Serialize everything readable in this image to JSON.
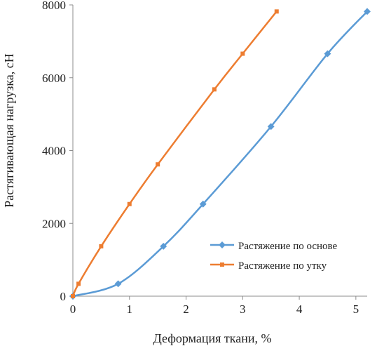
{
  "chart_data": {
    "type": "line",
    "xlabel": "Деформация ткани, %",
    "ylabel": "Растягивающая  нагрузка, сН",
    "xlim": [
      0,
      5.2
    ],
    "ylim": [
      0,
      8000
    ],
    "x_ticks": [
      "0",
      "1",
      "2",
      "3",
      "4",
      "5"
    ],
    "y_ticks": [
      "0",
      "2000",
      "4000",
      "6000",
      "8000"
    ],
    "grid": false,
    "legend_position": "bottom-right",
    "series": [
      {
        "name": "Растяжение по основе",
        "color": "#5b9bd5",
        "marker": "diamond",
        "x": [
          0,
          0.8,
          1.6,
          2.3,
          3.5,
          4.5,
          5.2
        ],
        "y": [
          0,
          340,
          1370,
          2530,
          4660,
          6660,
          7820
        ]
      },
      {
        "name": "Растяжение по утку",
        "color": "#ed7d31",
        "marker": "square",
        "x": [
          0,
          0.1,
          0.5,
          1.0,
          1.5,
          2.5,
          3.0,
          3.6
        ],
        "y": [
          0,
          340,
          1370,
          2530,
          3620,
          5680,
          6660,
          7820
        ]
      }
    ]
  }
}
